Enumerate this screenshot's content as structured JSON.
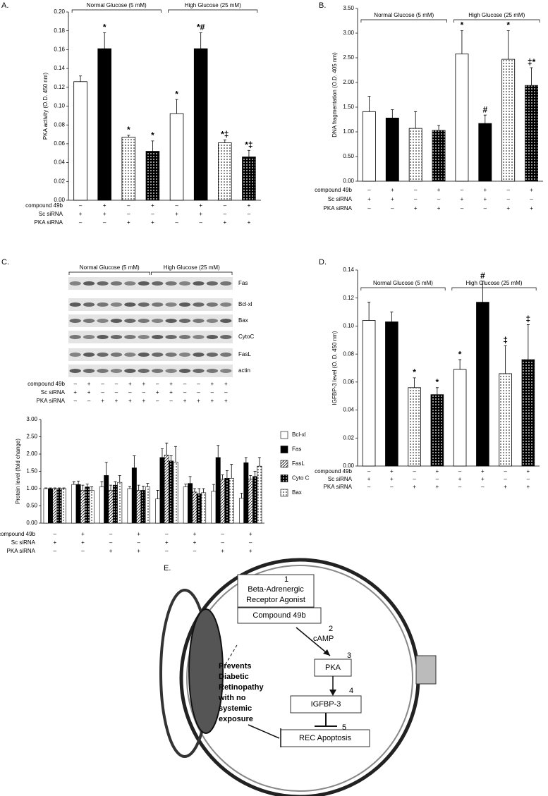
{
  "chart_data": [
    {
      "type": "bar",
      "panel": "A.",
      "ylabel": "PKA activity (O.D. 450 nm)",
      "groups": [
        "Normal Glucose (5 mM)",
        "High Glucose (25 mM)"
      ],
      "values": [
        0.126,
        0.161,
        0.067,
        0.052,
        0.092,
        0.161,
        0.061,
        0.046
      ],
      "errors": [
        0.006,
        0.017,
        0.002,
        0.011,
        0.015,
        0.017,
        0.003,
        0.007
      ],
      "annotations": [
        null,
        "*",
        "*",
        "*",
        "*",
        "*#",
        "*‡",
        "*‡"
      ],
      "fills": [
        "white",
        "black",
        "dots",
        "checker",
        "white",
        "black",
        "dots",
        "checker"
      ],
      "ylim": [
        0,
        0.2
      ],
      "yticks": [
        {
          "value": 0,
          "label": "0.00"
        },
        {
          "value": 0.02,
          "label": "0.02"
        },
        {
          "value": 0.04,
          "label": "0.04"
        },
        {
          "value": 0.06,
          "label": "0.06"
        },
        {
          "value": 0.08,
          "label": "0.08"
        },
        {
          "value": 0.1,
          "label": "0.10"
        },
        {
          "value": 0.12,
          "label": "0.12"
        },
        {
          "value": 0.14,
          "label": "0.14"
        },
        {
          "value": 0.16,
          "label": "0.16"
        },
        {
          "value": 0.18,
          "label": "0.18"
        },
        {
          "value": 0.2,
          "label": "0.20"
        }
      ],
      "conditions": [
        {
          "name": "compound 49b",
          "values": [
            "–",
            "+",
            "–",
            "+",
            "–",
            "+",
            "–",
            "+"
          ]
        },
        {
          "name": "Sc siRNA",
          "values": [
            "+",
            "+",
            "–",
            "–",
            "+",
            "+",
            "–",
            "–"
          ]
        },
        {
          "name": "PKA siRNA",
          "values": [
            "–",
            "–",
            "+",
            "+",
            "–",
            "–",
            "+",
            "+"
          ]
        }
      ]
    },
    {
      "type": "bar",
      "panel": "B.",
      "ylabel": "DNA fragmentation (O.D. 405 nm)",
      "groups": [
        "Normal Glucose (5 mM)",
        "High Glucose (25 mM)"
      ],
      "values": [
        1.41,
        1.28,
        1.07,
        1.03,
        2.58,
        1.17,
        2.47,
        1.94
      ],
      "errors": [
        0.31,
        0.17,
        0.34,
        0.1,
        0.47,
        0.17,
        0.58,
        0.36
      ],
      "annotations": [
        null,
        null,
        null,
        null,
        "*",
        "#",
        "*",
        "‡*"
      ],
      "fills": [
        "white",
        "black",
        "dots",
        "checker",
        "white",
        "black",
        "dots",
        "checker"
      ],
      "ylim": [
        0,
        3.5
      ],
      "yticks": [
        {
          "value": 0,
          "label": "0.00"
        },
        {
          "value": 0.5,
          "label": "0.50"
        },
        {
          "value": 1,
          "label": "1.00"
        },
        {
          "value": 1.5,
          "label": "1.50"
        },
        {
          "value": 2,
          "label": "2.00"
        },
        {
          "value": 2.5,
          "label": "2.50"
        },
        {
          "value": 3,
          "label": "3.00"
        },
        {
          "value": 3.5,
          "label": "3.50"
        }
      ],
      "conditions": [
        {
          "name": "compound 49b",
          "values": [
            "–",
            "+",
            "–",
            "+",
            "–",
            "+",
            "–",
            "+"
          ]
        },
        {
          "name": "Sc siRNA",
          "values": [
            "+",
            "+",
            "–",
            "–",
            "+",
            "+",
            "–",
            "–"
          ]
        },
        {
          "name": "PKA siRNA",
          "values": [
            "–",
            "–",
            "+",
            "+",
            "–",
            "–",
            "+",
            "+"
          ]
        }
      ]
    },
    {
      "type": "bar",
      "panel": "C.",
      "ylabel": "Protein level (fold change)",
      "series": [
        {
          "name": "Bcl-xl",
          "fill": "white",
          "values": [
            1,
            1.12,
            1.05,
            1.0,
            0.7,
            1.05,
            0.92,
            0.72
          ],
          "errors": [
            0.02,
            0.08,
            0.15,
            0.06,
            0.25,
            0.08,
            0.2,
            0.15
          ]
        },
        {
          "name": "Fas",
          "fill": "black",
          "values": [
            1,
            1.12,
            1.38,
            1.6,
            1.9,
            1.15,
            1.9,
            1.75
          ],
          "errors": [
            0.02,
            0.1,
            0.38,
            0.35,
            0.25,
            0.2,
            0.35,
            0.15
          ]
        },
        {
          "name": "FasL",
          "fill": "hatch",
          "values": [
            1,
            0.95,
            0.95,
            0.95,
            1.97,
            0.9,
            1.28,
            1.28
          ],
          "errors": [
            0.02,
            0.15,
            0.15,
            0.15,
            0.35,
            0.1,
            0.12,
            0.1
          ]
        },
        {
          "name": "Cyto C",
          "fill": "checker",
          "values": [
            1,
            1.05,
            1.1,
            0.95,
            1.8,
            0.85,
            1.3,
            1.35
          ],
          "errors": [
            0.02,
            0.08,
            0.1,
            0.12,
            0.15,
            0.15,
            0.22,
            0.15
          ]
        },
        {
          "name": "Bax",
          "fill": "dots",
          "values": [
            1,
            0.95,
            1.18,
            1.05,
            1.77,
            0.88,
            1.3,
            1.65
          ],
          "errors": [
            0.02,
            0.1,
            0.2,
            0.1,
            0.45,
            0.12,
            0.4,
            0.25
          ]
        }
      ],
      "ylim": [
        0,
        3
      ],
      "yticks": [
        {
          "value": 0,
          "label": "0.00"
        },
        {
          "value": 0.5,
          "label": "0.50"
        },
        {
          "value": 1,
          "label": "1.00"
        },
        {
          "value": 1.5,
          "label": "1.50"
        },
        {
          "value": 2,
          "label": "2.00"
        },
        {
          "value": 2.5,
          "label": "2.50"
        },
        {
          "value": 3,
          "label": "3.00"
        }
      ],
      "conditions": [
        {
          "name": "compound 49b",
          "values": [
            "–",
            "+",
            "–",
            "+",
            "–",
            "+",
            "–",
            "+"
          ]
        },
        {
          "name": "Sc siRNA",
          "values": [
            "+",
            "+",
            "–",
            "–",
            "+",
            "+",
            "–",
            "–"
          ]
        },
        {
          "name": "PKA siRNA",
          "values": [
            "–",
            "–",
            "+",
            "+",
            "–",
            "–",
            "+",
            "+"
          ]
        }
      ]
    },
    {
      "type": "bar",
      "panel": "D.",
      "ylabel": "IGFBP-3 level (O. D. 450 nm)",
      "groups": [
        "Normal Glucose (5 mM)",
        "High Glucose (25 mM)"
      ],
      "values": [
        0.104,
        0.103,
        0.056,
        0.051,
        0.069,
        0.117,
        0.066,
        0.076
      ],
      "errors": [
        0.013,
        0.007,
        0.007,
        0.005,
        0.007,
        0.015,
        0.02,
        0.025
      ],
      "annotations": [
        null,
        null,
        "*",
        "*",
        "*",
        "#",
        "‡",
        "‡"
      ],
      "fills": [
        "white",
        "black",
        "dots",
        "checker",
        "white",
        "black",
        "dots",
        "checker"
      ],
      "ylim": [
        0,
        0.14
      ],
      "yticks": [
        {
          "value": 0,
          "label": "0.00"
        },
        {
          "value": 0.02,
          "label": "0.02"
        },
        {
          "value": 0.04,
          "label": "0.04"
        },
        {
          "value": 0.06,
          "label": "0.06"
        },
        {
          "value": 0.08,
          "label": "0.08"
        },
        {
          "value": 0.1,
          "label": "0.10"
        },
        {
          "value": 0.12,
          "label": "0.12"
        },
        {
          "value": 0.14,
          "label": "0.14"
        }
      ],
      "conditions": [
        {
          "name": "compound 49b",
          "values": [
            "–",
            "+",
            "–",
            "+",
            "–",
            "+",
            "–",
            "+"
          ]
        },
        {
          "name": "Sc siRNA",
          "values": [
            "+",
            "+",
            "–",
            "–",
            "+",
            "+",
            "–",
            "–"
          ]
        },
        {
          "name": "PKA siRNA",
          "values": [
            "–",
            "–",
            "+",
            "+",
            "–",
            "–",
            "+",
            "+"
          ]
        }
      ]
    }
  ],
  "blot": {
    "groups": [
      "Normal Glucose (5 mM)",
      "High Glucose (25 mM)"
    ],
    "labels": [
      "Fas",
      "Bcl-xl",
      "Bax",
      "CytoC",
      "FasL",
      "actin"
    ],
    "conditions": [
      {
        "name": "compound 49b",
        "values": [
          "–",
          "+",
          "–",
          "–",
          "+",
          "+",
          "–",
          "+",
          "–",
          "–",
          "+",
          "+"
        ]
      },
      {
        "name": "Sc siRNA",
        "values": [
          "+",
          "+",
          "–",
          "–",
          "–",
          "–",
          "+",
          "+",
          "–",
          "–",
          "–",
          "–"
        ]
      },
      {
        "name": "PKA siRNA",
        "values": [
          "–",
          "–",
          "+",
          "+",
          "+",
          "+",
          "–",
          "–",
          "+",
          "+",
          "+",
          "+"
        ]
      }
    ]
  },
  "diagram": {
    "panel": "E.",
    "step1": "1",
    "agonist": [
      "Beta-Adrenergic",
      "Receptor Agonist"
    ],
    "compound": "Compound 49b",
    "step2": "2",
    "camp": "cAMP",
    "step3": "3",
    "pka": "PKA",
    "step4": "4",
    "igfbp": "IGFBP-3",
    "step5": "5",
    "apoptosis": "REC Apoptosis",
    "prevents": [
      "Prevents",
      "Diabetic",
      "Retinopathy",
      "with no",
      "systemic",
      "exposure"
    ]
  }
}
